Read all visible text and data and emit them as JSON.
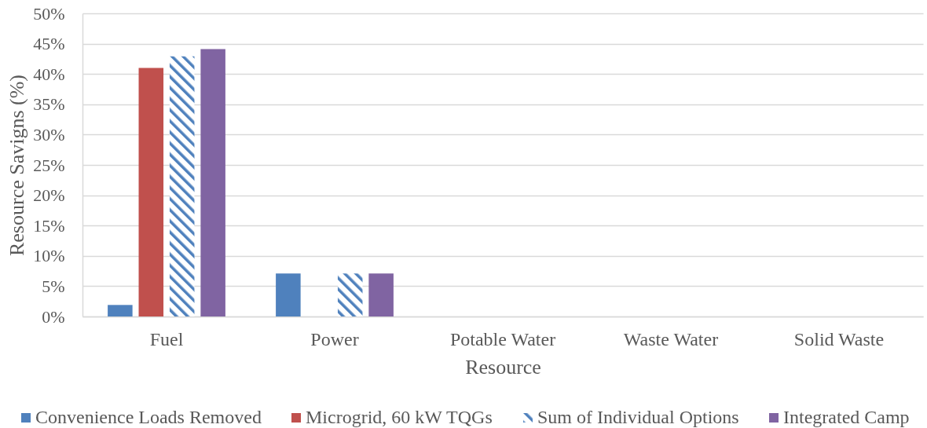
{
  "chart_data": {
    "type": "bar",
    "xlabel": "Resource",
    "ylabel": "Resource Savigns (%)",
    "categories": [
      "Fuel",
      "Power",
      "Potable Water",
      "Waste Water",
      "Solid Waste"
    ],
    "series": [
      {
        "name": "Convenience Loads Removed",
        "color": "#4f81bd",
        "values": [
          1.9,
          7.1,
          0,
          0,
          0
        ]
      },
      {
        "name": "Microgrid, 60 kW TQGs",
        "color": "#c0504d",
        "values": [
          41.0,
          0,
          0,
          0,
          0
        ]
      },
      {
        "name": "Sum of Individual Options",
        "color": "#4f81bd",
        "values": [
          42.9,
          7.1,
          0,
          0,
          0
        ]
      },
      {
        "name": "Integrated Camp",
        "color": "#8064a2",
        "values": [
          44.1,
          7.1,
          0,
          0,
          0
        ]
      }
    ],
    "ylim": [
      0,
      50
    ],
    "yticks": [
      {
        "value": 0,
        "label": "0%"
      },
      {
        "value": 5,
        "label": "5%"
      },
      {
        "value": 10,
        "label": "10%"
      },
      {
        "value": 15,
        "label": "15%"
      },
      {
        "value": 20,
        "label": "20%"
      },
      {
        "value": 25,
        "label": "25%"
      },
      {
        "value": 30,
        "label": "30%"
      },
      {
        "value": 35,
        "label": "35%"
      },
      {
        "value": 40,
        "label": "40%"
      },
      {
        "value": 45,
        "label": "45%"
      },
      {
        "value": 50,
        "label": "50%"
      }
    ],
    "grid": "y",
    "legend": "bottom"
  }
}
